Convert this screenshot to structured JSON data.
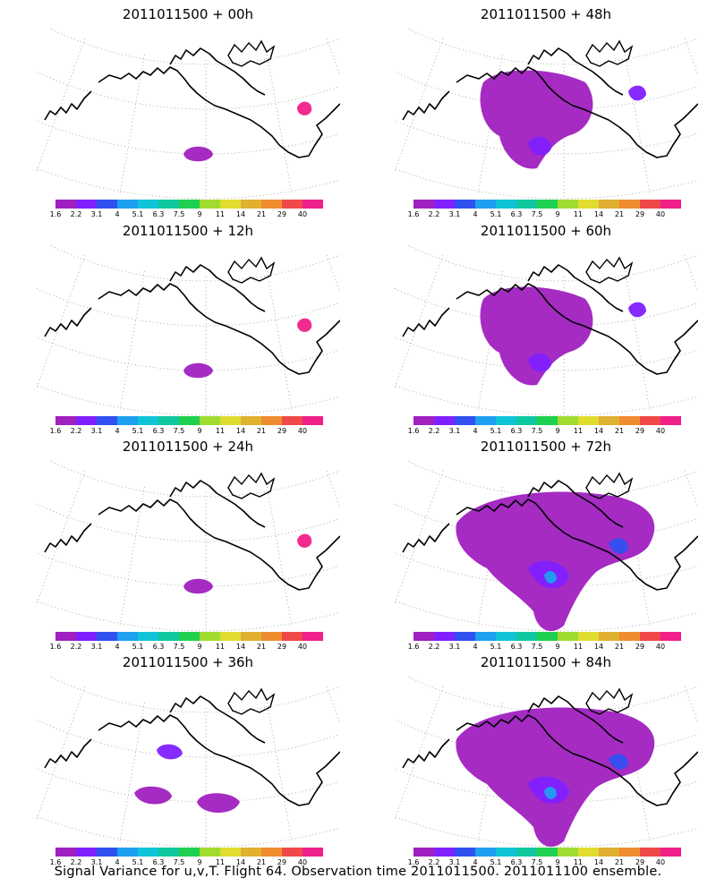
{
  "caption": "Signal Variance for u,v,T. Flight 64. Observation time 2011011500. 2011011100 ensemble.",
  "colorbar": {
    "labels": [
      "1.6",
      "2.2",
      "3.1",
      "4",
      "5.1",
      "6.3",
      "7.5",
      "9",
      "11",
      "14",
      "21",
      "29",
      "40"
    ],
    "colors": [
      "#a020c0",
      "#8020ff",
      "#3050f0",
      "#1ea0f0",
      "#10c4d8",
      "#10c8a0",
      "#20d050",
      "#a0dc30",
      "#e0dc30",
      "#e0b030",
      "#f08c30",
      "#f04848",
      "#f0208a"
    ]
  },
  "panels": [
    {
      "title": "2011011500 + 00h",
      "coverage": "minimal"
    },
    {
      "title": "2011011500 + 48h",
      "coverage": "moderate"
    },
    {
      "title": "2011011500 + 12h",
      "coverage": "minimal"
    },
    {
      "title": "2011011500 + 60h",
      "coverage": "moderate"
    },
    {
      "title": "2011011500 + 24h",
      "coverage": "minimal"
    },
    {
      "title": "2011011500 + 72h",
      "coverage": "large"
    },
    {
      "title": "2011011500 + 36h",
      "coverage": "small"
    },
    {
      "title": "2011011500 + 84h",
      "coverage": "large"
    }
  ],
  "map": {
    "projection": "polar stereographic sector",
    "graticule": "dotted",
    "coastline_color": "#000000"
  }
}
